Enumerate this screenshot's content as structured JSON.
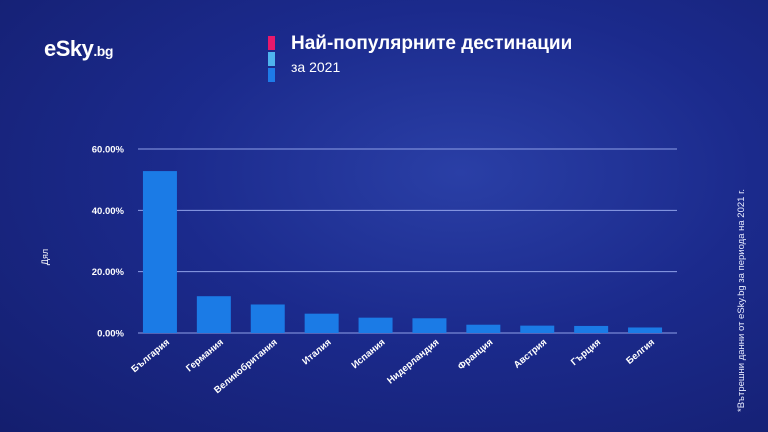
{
  "logo": {
    "text": "eSky",
    "suffix": ".bg"
  },
  "header": {
    "title": "Най-популярните дестинации",
    "subtitle": "за 2021"
  },
  "colors": {
    "accent_pink": "#e8196b",
    "accent_light_blue": "#4fb4ee",
    "accent_blue": "#1e7be8",
    "bar": "#1b7be6",
    "gridline": "#8fa0e8"
  },
  "note": "*Вътрешни данни от eSky.bg за периода на 2021 г.",
  "chart_data": {
    "type": "bar",
    "title": "Най-популярните дестинации",
    "subtitle": "за 2021",
    "xlabel": "",
    "ylabel": "Дял",
    "ylim": [
      0,
      60
    ],
    "yticks": [
      "0.00%",
      "20.00%",
      "40.00%",
      "60.00%"
    ],
    "categories": [
      "България",
      "Германия",
      "Великобритания",
      "Италия",
      "Испания",
      "Нидерландия",
      "Франция",
      "Австрия",
      "Гърция",
      "Белгия"
    ],
    "values": [
      52.8,
      12.0,
      9.3,
      6.3,
      5.0,
      4.8,
      2.7,
      2.4,
      2.3,
      1.8
    ],
    "grid": true,
    "legend": "none"
  }
}
